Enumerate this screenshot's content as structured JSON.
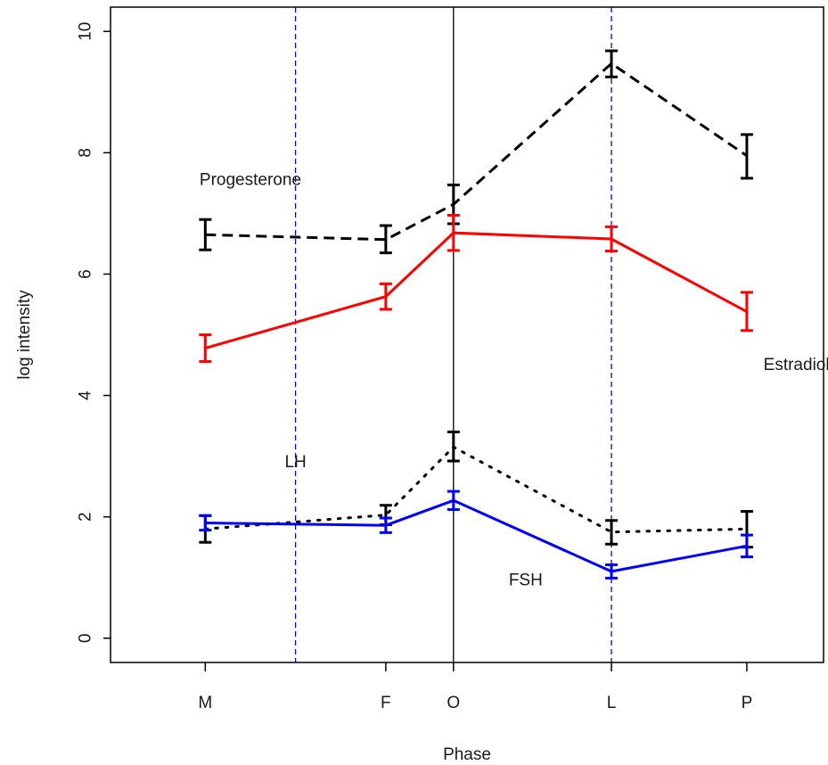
{
  "chart_data": {
    "type": "line",
    "xlabel": "Phase",
    "ylabel": "log intensity",
    "ylim": [
      0,
      10
    ],
    "yticks": [
      0,
      2,
      4,
      6,
      8,
      10
    ],
    "categories": [
      "M",
      "F",
      "O",
      "L",
      "P"
    ],
    "x": [
      0,
      2,
      2.75,
      4.5,
      6
    ],
    "xlim": [
      -1.05,
      6.85
    ],
    "grid": false,
    "vlines": [
      {
        "x": 1,
        "style": "dashed",
        "color": "#0000ff"
      },
      {
        "x": 2.75,
        "style": "solid",
        "color": "#000000"
      },
      {
        "x": 4.5,
        "style": "dashed",
        "color": "#0000ff"
      }
    ],
    "series": [
      {
        "name": "Progesterone",
        "color": "#000000",
        "dash": "dashed",
        "y": [
          6.65,
          6.57,
          7.15,
          9.47,
          7.95
        ],
        "low": [
          6.4,
          6.35,
          6.83,
          9.25,
          7.58
        ],
        "high": [
          6.9,
          6.8,
          7.47,
          9.68,
          8.3
        ]
      },
      {
        "name": "Estradiol",
        "color": "#ff0000",
        "dash": "solid",
        "y": [
          4.78,
          5.63,
          6.68,
          6.58,
          5.38
        ],
        "low": [
          4.56,
          5.42,
          6.39,
          6.38,
          5.07
        ],
        "high": [
          5.0,
          5.84,
          6.97,
          6.78,
          5.7
        ]
      },
      {
        "name": "LH",
        "color": "#000000",
        "dash": "dotted",
        "y": [
          1.8,
          2.03,
          3.15,
          1.75,
          1.8
        ],
        "low": [
          1.58,
          1.87,
          2.92,
          1.55,
          1.5
        ],
        "high": [
          2.02,
          2.19,
          3.4,
          1.94,
          2.09
        ]
      },
      {
        "name": "FSH",
        "color": "#0000ff",
        "dash": "solid",
        "y": [
          1.9,
          1.86,
          2.27,
          1.1,
          1.52
        ],
        "low": [
          1.78,
          1.74,
          2.12,
          0.99,
          1.34
        ],
        "high": [
          2.02,
          1.98,
          2.42,
          1.21,
          1.7
        ]
      }
    ],
    "annotations": [
      {
        "text": "Progesterone",
        "series": "Progesterone",
        "x": 0.5,
        "y": 7.55
      },
      {
        "text": "Estradiol",
        "series": "Estradiol",
        "x": 6.55,
        "y": 4.5
      },
      {
        "text": "LH",
        "series": "LH",
        "x": 1.0,
        "y": 2.9
      },
      {
        "text": "FSH",
        "series": "FSH",
        "x": 3.55,
        "y": 0.95
      }
    ]
  }
}
